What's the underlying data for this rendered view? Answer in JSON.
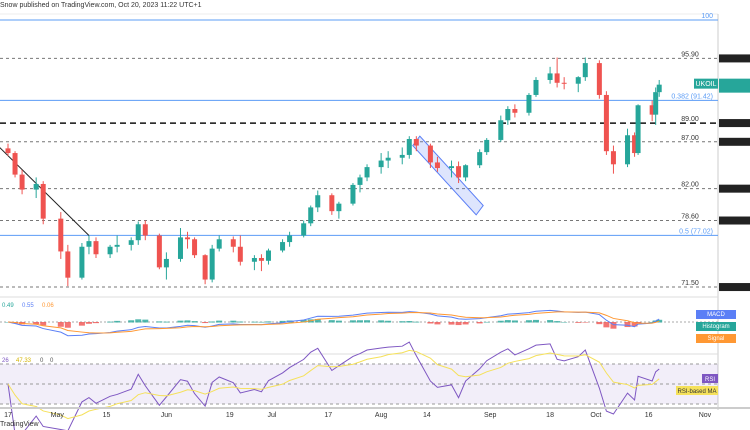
{
  "header": {
    "published": "Snow published on TradingView.com, Oct 20, 2023 11:22 UTC+1"
  },
  "footer": {
    "brand": "TradingView"
  },
  "chart_data": {
    "type": "candlestick",
    "symbol": "UKOIL",
    "colors": {
      "up": "#26a69a",
      "down": "#ef5350",
      "fib": "#5b9cf6",
      "macd": "#5b7ff6",
      "signal": "#ff9833",
      "rsi": "#7e57c2",
      "rsi_ma": "#f5e15b"
    },
    "ylim": [
      71,
      101
    ],
    "levels": [
      {
        "label": "100",
        "value": 100,
        "style": "fib"
      },
      {
        "label": "95.90",
        "value": 95.9,
        "style": "dashed"
      },
      {
        "label": "0.382 (91.42)",
        "value": 91.42,
        "style": "fib"
      },
      {
        "label": "89.00",
        "value": 89,
        "style": "bold-dashed"
      },
      {
        "label": "87.00",
        "value": 87,
        "style": "dashed"
      },
      {
        "label": "82.00",
        "value": 82,
        "style": "dashed"
      },
      {
        "label": "78.60",
        "value": 78.6,
        "style": "dashed"
      },
      {
        "label": "0.5 (77.02)",
        "value": 77.02,
        "style": "fib"
      },
      {
        "label": "71.50",
        "value": 71.5,
        "style": "dashed"
      }
    ],
    "x_ticks": [
      [
        "04-17",
        "17"
      ],
      [
        "05-01",
        "May"
      ],
      [
        "05-15",
        "15"
      ],
      [
        "06-01",
        "Jun"
      ],
      [
        "06-19",
        "19"
      ],
      [
        "07-01",
        "Jul"
      ],
      [
        "07-17",
        "17"
      ],
      [
        "08-01",
        "Aug"
      ],
      [
        "08-14",
        "14"
      ],
      [
        "09-01",
        "Sep"
      ],
      [
        "09-18",
        "18"
      ],
      [
        "10-01",
        "Oct"
      ],
      [
        "10-16",
        "16"
      ],
      [
        "11-01",
        "Nov"
      ]
    ],
    "trendline": [
      [
        "04-13",
        87
      ],
      [
        "05-10",
        77
      ]
    ],
    "channel": [
      [
        "08-10",
        86.6
      ],
      [
        "08-12",
        87.6
      ],
      [
        "08-30",
        80.2
      ],
      [
        "08-28",
        79.2
      ]
    ],
    "candles": [
      [
        "04-17",
        86.3,
        86.8,
        85.5,
        85.8
      ],
      [
        "04-19",
        85.8,
        86,
        83.2,
        83.5
      ],
      [
        "04-21",
        83.5,
        84,
        81.4,
        81.9
      ],
      [
        "04-25",
        81.9,
        83.2,
        81,
        82.5
      ],
      [
        "04-27",
        82.5,
        82.8,
        78.2,
        78.8
      ],
      [
        "05-02",
        78.8,
        79.5,
        74.5,
        75.3
      ],
      [
        "05-04",
        75.3,
        76,
        71.6,
        72.5
      ],
      [
        "05-08",
        72.5,
        76.2,
        72.3,
        75.8
      ],
      [
        "05-10",
        75.8,
        77,
        75,
        76.4
      ],
      [
        "05-12",
        76.4,
        76.8,
        74.6,
        75
      ],
      [
        "05-16",
        75,
        76,
        74.6,
        75.8
      ],
      [
        "05-18",
        75.8,
        77,
        75.2,
        76
      ],
      [
        "05-22",
        76,
        76.8,
        75.4,
        76.5
      ],
      [
        "05-24",
        76.5,
        78.5,
        76,
        78.2
      ],
      [
        "05-26",
        78.2,
        78.6,
        76.5,
        77
      ],
      [
        "05-30",
        77,
        77.2,
        73.4,
        73.6
      ],
      [
        "06-01",
        73.6,
        75.2,
        72.3,
        74.5
      ],
      [
        "06-05",
        74.5,
        77.8,
        74.2,
        76.8
      ],
      [
        "06-07",
        76.8,
        77.4,
        75.6,
        76.6
      ],
      [
        "06-09",
        76.6,
        76.8,
        74.6,
        74.9
      ],
      [
        "06-12",
        74.9,
        75,
        71.8,
        72.3
      ],
      [
        "06-14",
        72.3,
        76,
        72,
        75.6
      ],
      [
        "06-16",
        75.6,
        77,
        75.3,
        76.6
      ],
      [
        "06-20",
        76.6,
        76.9,
        75.2,
        75.8
      ],
      [
        "06-22",
        75.8,
        77,
        73.8,
        74.2
      ],
      [
        "06-26",
        74.2,
        74.9,
        73.3,
        74.6
      ],
      [
        "06-28",
        74.6,
        75,
        73.2,
        74.3
      ],
      [
        "06-30",
        74.3,
        75.6,
        73.9,
        75.4
      ],
      [
        "07-04",
        75.4,
        76.6,
        75.2,
        76.3
      ],
      [
        "07-06",
        76.3,
        77.4,
        75.8,
        77
      ],
      [
        "07-10",
        77,
        78.6,
        76.8,
        78.3
      ],
      [
        "07-12",
        78.3,
        80.2,
        78,
        80
      ],
      [
        "07-14",
        80,
        81.8,
        79.5,
        81.3
      ],
      [
        "07-18",
        81.3,
        81.5,
        79.2,
        79.6
      ],
      [
        "07-20",
        79.6,
        80.6,
        78.8,
        80.4
      ],
      [
        "07-24",
        80.4,
        82.6,
        80.2,
        82.4
      ],
      [
        "07-26",
        82.4,
        83.5,
        81.6,
        83.2
      ],
      [
        "07-28",
        83.2,
        84.6,
        82.8,
        84.3
      ],
      [
        "08-01",
        84.3,
        85.8,
        83.6,
        85
      ],
      [
        "08-03",
        85,
        86,
        84.2,
        85.3
      ],
      [
        "08-07",
        85.3,
        86.4,
        84.6,
        85.6
      ],
      [
        "08-09",
        85.6,
        87.6,
        85.2,
        87.3
      ],
      [
        "08-11",
        87.3,
        87.6,
        86,
        86.6
      ],
      [
        "08-15",
        86.6,
        86.8,
        84.2,
        84.8
      ],
      [
        "08-17",
        84.8,
        85.4,
        83.8,
        84.2
      ],
      [
        "08-21",
        84.2,
        85,
        83.2,
        84.4
      ],
      [
        "08-23",
        84.4,
        84.9,
        82.6,
        83.2
      ],
      [
        "08-25",
        83.2,
        84.6,
        82.8,
        84.5
      ],
      [
        "08-29",
        84.5,
        86.2,
        84.2,
        85.9
      ],
      [
        "08-31",
        85.9,
        87.4,
        85.6,
        87.2
      ],
      [
        "09-04",
        87.2,
        89.8,
        87,
        89.3
      ],
      [
        "09-06",
        89.3,
        90.8,
        88.8,
        90.5
      ],
      [
        "09-08",
        90.5,
        91,
        89.6,
        90.1
      ],
      [
        "09-12",
        90.1,
        92.2,
        89.8,
        92
      ],
      [
        "09-14",
        92,
        93.9,
        91.8,
        93.6
      ],
      [
        "09-18",
        93.6,
        95,
        93.2,
        94.3
      ],
      [
        "09-20",
        94.3,
        96,
        92.8,
        93.3
      ],
      [
        "09-22",
        93.3,
        93.9,
        92.6,
        93.2
      ],
      [
        "09-26",
        93.2,
        94,
        92.3,
        93.9
      ],
      [
        "09-28",
        93.9,
        96,
        93.5,
        95.4
      ],
      [
        "10-02",
        95.4,
        95.7,
        91.6,
        92
      ],
      [
        "10-04",
        92,
        92.4,
        85.6,
        86
      ],
      [
        "10-06",
        86,
        86.6,
        83.6,
        84.6
      ],
      [
        "10-10",
        84.6,
        88.4,
        84.3,
        87.7
      ],
      [
        "10-12",
        87.7,
        88,
        85.4,
        85.8
      ],
      [
        "10-13",
        85.8,
        91,
        85.6,
        90.9
      ],
      [
        "10-17",
        90.9,
        91.4,
        89.2,
        89.9
      ],
      [
        "10-18",
        89.9,
        92.8,
        88.8,
        92.3
      ],
      [
        "10-19",
        92.3,
        93.6,
        91.8,
        93.1
      ]
    ],
    "macd": {
      "legend": [
        "0.49",
        "0.55",
        "0.06"
      ],
      "badges": [
        "MACD",
        "Histogram",
        "Signal"
      ]
    },
    "rsi": {
      "legend": [
        "26",
        "47.33",
        "0",
        "0"
      ],
      "badges": [
        "RSI",
        "RSI-based MA"
      ]
    }
  }
}
